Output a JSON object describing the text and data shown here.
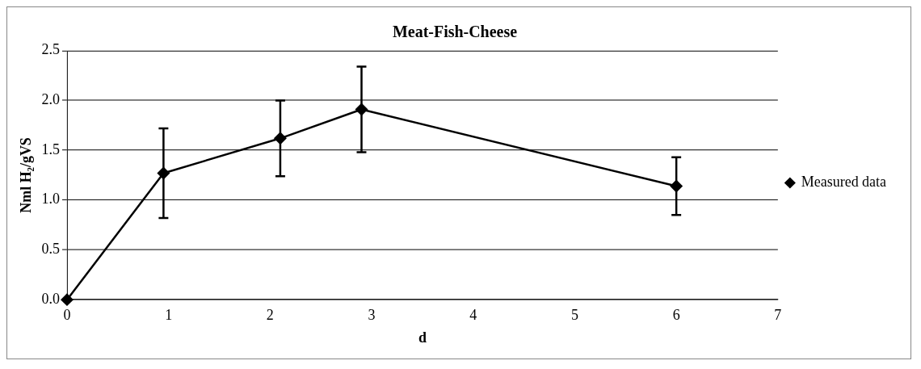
{
  "chart_data": {
    "type": "line",
    "title": "Meat-Fish-Cheese",
    "xlabel": "d",
    "ylabel": "Nml H₂/gVS",
    "x": [
      0,
      0.95,
      2.1,
      2.9,
      6
    ],
    "series": [
      {
        "name": "Measured data",
        "color": "#000000",
        "values": [
          0,
          1.27,
          1.62,
          1.91,
          1.14
        ],
        "errors": [
          null,
          [
            0.82,
            1.72
          ],
          [
            1.24,
            2.0
          ],
          [
            1.48,
            2.34
          ],
          [
            0.85,
            1.43
          ]
        ]
      }
    ],
    "xlim": [
      0,
      7
    ],
    "xticks": [
      0,
      1,
      2,
      3,
      4,
      5,
      6,
      7
    ],
    "ylim": [
      0,
      2.5
    ],
    "yticks": [
      {
        "value": 0,
        "label": "0.0"
      },
      {
        "value": 0.5,
        "label": "0.5"
      },
      {
        "value": 1,
        "label": "1.0"
      },
      {
        "value": 1.5,
        "label": "1.5"
      },
      {
        "value": 2,
        "label": "2.0"
      },
      {
        "value": 2.5,
        "label": "2.5"
      }
    ],
    "grid": "y",
    "legend": "right",
    "marker": "diamond",
    "line_style": "solid"
  }
}
